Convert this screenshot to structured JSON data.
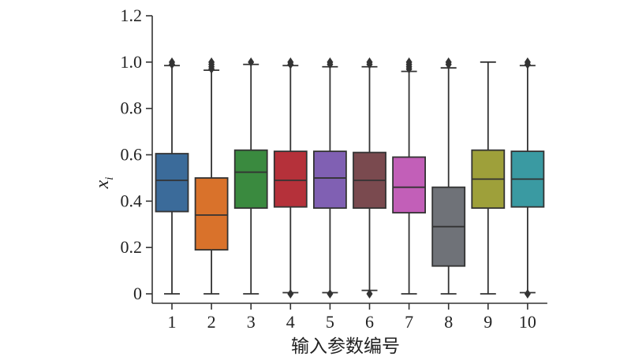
{
  "chart_data": {
    "type": "box",
    "xlabel": "输入参数编号",
    "ylabel": "x",
    "ylabel_subscript": "i",
    "ylim": [
      0,
      1.2
    ],
    "yticks": [
      {
        "value": 0,
        "label": "0"
      },
      {
        "value": 0.2,
        "label": "0.2"
      },
      {
        "value": 0.4,
        "label": "0.4"
      },
      {
        "value": 0.6,
        "label": "0.6"
      },
      {
        "value": 0.8,
        "label": "0.8"
      },
      {
        "value": 1.0,
        "label": "1.0"
      },
      {
        "value": 1.2,
        "label": "1.2"
      }
    ],
    "grid": false,
    "categories": [
      "1",
      "2",
      "3",
      "4",
      "5",
      "6",
      "7",
      "8",
      "9",
      "10"
    ],
    "boxes": [
      {
        "whislo": 0.0,
        "q1": 0.355,
        "med": 0.49,
        "q3": 0.605,
        "whishi": 0.985,
        "fliers_low": [],
        "fliers_high": [
          0.99,
          1.0
        ],
        "color": "#3b6b9a"
      },
      {
        "whislo": 0.0,
        "q1": 0.19,
        "med": 0.34,
        "q3": 0.5,
        "whishi": 0.965,
        "fliers_low": [],
        "fliers_high": [
          0.97,
          0.98,
          0.99,
          1.0
        ],
        "color": "#d9722b"
      },
      {
        "whislo": 0.0,
        "q1": 0.37,
        "med": 0.525,
        "q3": 0.62,
        "whishi": 0.99,
        "fliers_low": [],
        "fliers_high": [
          1.0
        ],
        "color": "#3a8a3f"
      },
      {
        "whislo": 0.005,
        "q1": 0.375,
        "med": 0.49,
        "q3": 0.615,
        "whishi": 0.985,
        "fliers_low": [
          0.0
        ],
        "fliers_high": [
          0.99,
          1.0
        ],
        "color": "#b5313a"
      },
      {
        "whislo": 0.005,
        "q1": 0.37,
        "med": 0.5,
        "q3": 0.615,
        "whishi": 0.98,
        "fliers_low": [
          0.0
        ],
        "fliers_high": [
          0.99,
          1.0
        ],
        "color": "#8060b3"
      },
      {
        "whislo": 0.015,
        "q1": 0.37,
        "med": 0.49,
        "q3": 0.61,
        "whishi": 0.98,
        "fliers_low": [
          0.0
        ],
        "fliers_high": [
          0.99,
          1.0
        ],
        "color": "#7a4a4f"
      },
      {
        "whislo": 0.0,
        "q1": 0.35,
        "med": 0.46,
        "q3": 0.59,
        "whishi": 0.96,
        "fliers_low": [],
        "fliers_high": [
          0.97,
          0.98,
          0.99,
          1.0
        ],
        "color": "#c25fb8"
      },
      {
        "whislo": 0.0,
        "q1": 0.12,
        "med": 0.29,
        "q3": 0.46,
        "whishi": 0.975,
        "fliers_low": [],
        "fliers_high": [
          0.99,
          1.0
        ],
        "color": "#6f7278"
      },
      {
        "whislo": 0.0,
        "q1": 0.37,
        "med": 0.495,
        "q3": 0.62,
        "whishi": 1.0,
        "fliers_low": [],
        "fliers_high": [],
        "color": "#9ea03a"
      },
      {
        "whislo": 0.005,
        "q1": 0.375,
        "med": 0.495,
        "q3": 0.615,
        "whishi": 0.985,
        "fliers_low": [
          0.0
        ],
        "fliers_high": [
          0.99,
          1.0
        ],
        "color": "#3a9aa2"
      }
    ]
  }
}
